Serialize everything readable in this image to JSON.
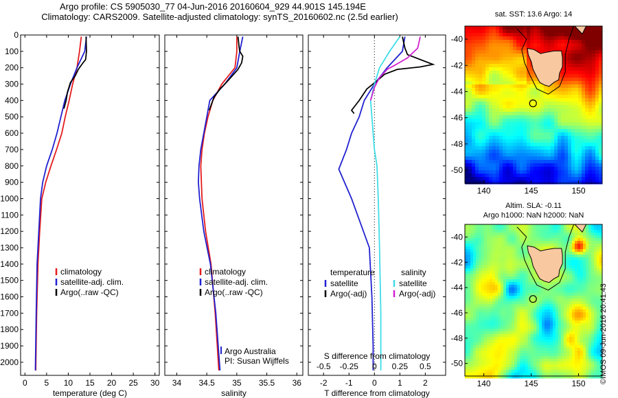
{
  "header": {
    "line1": "Argo profile: CS 5905030_77 04-Jun-2016 20160604_929 44.901S 145.194E",
    "line2": "Climatology: CARS2009. Satellite-adjusted climatology: synTS_20160602.nc (2.5d earlier)"
  },
  "colors": {
    "climatology": "#e41a1c",
    "satellite": "#2020d0",
    "argo": "#000000",
    "sat_sal": "#3fdce8",
    "argo_adj_sal": "#d020d0"
  },
  "chart_data": [
    {
      "type": "line",
      "name": "temperature-panel",
      "xlabel": "temperature (deg C)",
      "ylabel": "",
      "xlim": [
        -1,
        31
      ],
      "ylim": [
        2080,
        0
      ],
      "y_reversed": true,
      "xticks": [
        0,
        5,
        10,
        15,
        20,
        25,
        30
      ],
      "yticks": [
        0,
        100,
        200,
        300,
        400,
        500,
        600,
        700,
        800,
        900,
        1000,
        1100,
        1200,
        1300,
        1400,
        1500,
        1600,
        1700,
        1800,
        1900,
        2000
      ],
      "legend": {
        "position": "lower-center",
        "entries": [
          "climatology",
          "satellite-adj. clim.",
          "Argo(..raw -QC)"
        ]
      },
      "series": [
        {
          "name": "climatology",
          "color_key": "climatology",
          "x": [
            13.0,
            12.6,
            12.0,
            11.0,
            10.2,
            9.3,
            8.5,
            7.3,
            6.0,
            4.8,
            3.9,
            3.4,
            3.0,
            2.7,
            2.5
          ],
          "y": [
            10,
            100,
            200,
            300,
            400,
            500,
            600,
            700,
            800,
            900,
            1000,
            1200,
            1400,
            1700,
            2050
          ]
        },
        {
          "name": "satellite-adj. clim.",
          "color_key": "satellite",
          "x": [
            14.2,
            13.8,
            12.0,
            10.5,
            9.2,
            8.3,
            7.4,
            6.3,
            5.0,
            4.1,
            3.6,
            3.2,
            2.8,
            2.6,
            2.4
          ],
          "y": [
            10,
            100,
            200,
            300,
            400,
            500,
            600,
            700,
            800,
            900,
            1000,
            1200,
            1400,
            1700,
            2050
          ]
        },
        {
          "name": "Argo(..raw -QC)",
          "color_key": "argo",
          "x": [
            14.1,
            14.2,
            14.0,
            13.4,
            12.3,
            11.6,
            10.5,
            9.8,
            9.5,
            9.0
          ],
          "y": [
            10,
            100,
            150,
            170,
            210,
            250,
            290,
            350,
            400,
            450
          ]
        }
      ]
    },
    {
      "type": "line",
      "name": "salinity-panel",
      "xlabel": "salinity",
      "ylabel": "",
      "xlim": [
        33.8,
        36.1
      ],
      "ylim": [
        2080,
        0
      ],
      "y_reversed": true,
      "xticks": [
        34,
        34.5,
        35,
        35.5,
        36
      ],
      "legend": {
        "position": "lower-center",
        "entries": [
          "climatology",
          "satellite-adj. clim.",
          "Argo(..raw -QC)"
        ]
      },
      "annotation": {
        "line1": "Argo Australia",
        "line2": "PI: Susan Wijffels"
      },
      "series": [
        {
          "name": "climatology",
          "color_key": "climatology",
          "x": [
            35.0,
            35.0,
            34.97,
            34.75,
            34.6,
            34.52,
            34.46,
            34.42,
            34.4,
            34.41,
            34.42,
            34.48,
            34.57,
            34.64,
            34.7
          ],
          "y": [
            10,
            100,
            200,
            300,
            400,
            500,
            600,
            700,
            800,
            900,
            1000,
            1200,
            1400,
            1700,
            2050
          ]
        },
        {
          "name": "satellite-adj. clim.",
          "color_key": "satellite",
          "x": [
            35.1,
            35.05,
            35.0,
            34.8,
            34.55,
            34.5,
            34.45,
            34.4,
            34.37,
            34.36,
            34.38,
            34.45,
            34.56,
            34.65,
            34.72
          ],
          "y": [
            10,
            100,
            200,
            300,
            400,
            500,
            600,
            700,
            800,
            900,
            1000,
            1200,
            1400,
            1700,
            2050
          ]
        },
        {
          "name": "Argo(..raw -QC)",
          "color_key": "argo",
          "x": [
            35.02,
            35.04,
            35.05,
            35.1,
            35.08,
            35.02,
            34.85,
            34.72,
            34.62,
            34.58,
            34.54
          ],
          "y": [
            10,
            80,
            100,
            130,
            170,
            210,
            280,
            330,
            380,
            420,
            460
          ]
        }
      ]
    },
    {
      "type": "line",
      "name": "difference-panel",
      "xlabel": "T difference from climatology",
      "xlabel2": "S difference from climatology",
      "xlim": [
        -2.6,
        2.8
      ],
      "ylim": [
        2080,
        0
      ],
      "y_reversed": true,
      "xticks": [
        -2,
        -1,
        0,
        1,
        2
      ],
      "s_ticks": [
        -0.5,
        -0.25,
        0,
        0.25,
        0.5
      ],
      "s_tick_labels": [
        "-0.5",
        "-0.25",
        "0",
        "0.25",
        "0.5"
      ],
      "zero_line": "dotted",
      "legend_temperature": {
        "heading": "temperature",
        "entries": [
          "satellite",
          "Argo(-adj)"
        ]
      },
      "legend_salinity": {
        "heading": "salinity",
        "entries": [
          "satellite",
          "Argo(-adj)"
        ]
      },
      "series": [
        {
          "name": "T satellite",
          "color_key": "satellite",
          "x": [
            1.2,
            1.1,
            0.5,
            0.0,
            -0.4,
            -0.6,
            -0.9,
            -1.1,
            -1.4,
            -0.9,
            -0.2,
            -0.1,
            -0.05,
            -0.05
          ],
          "y": [
            10,
            100,
            200,
            300,
            400,
            500,
            600,
            700,
            820,
            1000,
            1300,
            1600,
            1900,
            2050
          ]
        },
        {
          "name": "T Argo(-adj)",
          "color_key": "argo",
          "x": [
            1.1,
            1.2,
            1.3,
            2.3,
            1.8,
            0.9,
            0.4,
            0.1,
            -0.3,
            -0.6,
            -0.9,
            -0.8
          ],
          "y": [
            10,
            80,
            120,
            180,
            195,
            210,
            240,
            280,
            330,
            400,
            460,
            480
          ]
        },
        {
          "name": "S satellite",
          "color_key": "sat_sal",
          "x": [
            1.0,
            0.6,
            0.2,
            0.0,
            -0.15,
            -0.1,
            -0.05,
            0.0,
            0.1,
            0.15,
            0.2,
            0.25,
            0.25
          ],
          "y": [
            10,
            100,
            200,
            300,
            400,
            500,
            600,
            700,
            800,
            1000,
            1300,
            1700,
            2050
          ]
        },
        {
          "name": "S Argo(-adj)",
          "color_key": "argo_adj_sal",
          "x": [
            1.8,
            1.7,
            1.3,
            0.8,
            0.5,
            0.2,
            0.0,
            -0.15
          ],
          "y": [
            10,
            80,
            140,
            185,
            210,
            260,
            320,
            400
          ]
        }
      ]
    }
  ],
  "maps": [
    {
      "name": "sst-map",
      "title": "sat. SST: 13.6 Argo: 14",
      "lat_ticks": [
        -40,
        -42,
        -44,
        -46,
        -48,
        -50
      ],
      "lon_ticks": [
        140,
        145,
        150
      ],
      "lon_range": [
        138,
        152.5
      ],
      "lat_range": [
        -51,
        -39
      ],
      "argo_position": {
        "lon": 145.194,
        "lat": -44.901
      }
    },
    {
      "name": "sla-map",
      "title": "Altim. SLA: -0.11",
      "subtitle": "Argo h1000: NaN h2000: NaN",
      "lat_ticks": [
        -40,
        -42,
        -44,
        -46,
        -48,
        -50
      ],
      "lon_ticks": [
        140,
        145,
        150
      ],
      "lon_range": [
        138,
        152.5
      ],
      "lat_range": [
        -51,
        -39
      ],
      "argo_position": {
        "lon": 145.194,
        "lat": -44.901
      }
    }
  ],
  "footer_stamp": "©IMOS 09-Jun-2016 20:41:43"
}
